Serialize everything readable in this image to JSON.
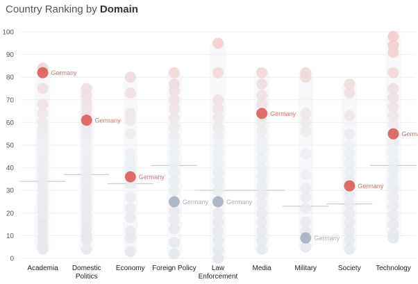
{
  "title": {
    "prefix": "Country Ranking by ",
    "emphasis": "Domain"
  },
  "colors": {
    "above": "#d9534f",
    "below": "#94a3b8",
    "grid": "#eeeeee",
    "axis_text": "#555555"
  },
  "chart_data": {
    "type": "scatter",
    "title": "Country Ranking by Domain",
    "xlabel": "",
    "ylabel": "",
    "ylim": [
      0,
      100
    ],
    "yticks": [
      0,
      10,
      20,
      30,
      40,
      50,
      60,
      70,
      80,
      90,
      100
    ],
    "grid": true,
    "highlight_label": "Germany",
    "categories": [
      {
        "name": "Academia",
        "lines": [
          "Academia"
        ],
        "reference": 34,
        "highlight": 82,
        "values": [
          84,
          75,
          68,
          64,
          60,
          57,
          54,
          51,
          48,
          45,
          42,
          39,
          36,
          33,
          30,
          27,
          24,
          21,
          18,
          15,
          12,
          9,
          6,
          4
        ]
      },
      {
        "name": "Domestic Politics",
        "lines": [
          "Domestic",
          "Politics"
        ],
        "reference": 37,
        "highlight": 61,
        "values": [
          75,
          72,
          69,
          66,
          63,
          58,
          55,
          52,
          49,
          46,
          43,
          40,
          37,
          34,
          31,
          28,
          25,
          22,
          19,
          16,
          13,
          10,
          8,
          4
        ]
      },
      {
        "name": "Economy",
        "lines": [
          "Economy"
        ],
        "reference": 33,
        "highlight": 36,
        "values": [
          80,
          73,
          64,
          61,
          55,
          46,
          42,
          38,
          33,
          27,
          22,
          18,
          12,
          9,
          3
        ]
      },
      {
        "name": "Foreign Policy",
        "lines": [
          "Foreign Policy"
        ],
        "reference": 41,
        "highlight": 25,
        "values": [
          82,
          77,
          74,
          70,
          66,
          62,
          58,
          54,
          50,
          46,
          42,
          38,
          34,
          30,
          21,
          17,
          13,
          7,
          2
        ]
      },
      {
        "name": "Law Enforcement",
        "lines": [
          "Law",
          "Enforcement"
        ],
        "reference": 30,
        "highlight": 25,
        "values": [
          95,
          82,
          70,
          66,
          62,
          58,
          54,
          50,
          46,
          42,
          38,
          34,
          30,
          20,
          16,
          12,
          8,
          4,
          0
        ]
      },
      {
        "name": "Media",
        "lines": [
          "Media"
        ],
        "reference": 30,
        "highlight": 64,
        "values": [
          82,
          77,
          72,
          68,
          60,
          56,
          52,
          48,
          44,
          40,
          36,
          32,
          28,
          24,
          20,
          16,
          12,
          8,
          4
        ]
      },
      {
        "name": "Military",
        "lines": [
          "Military"
        ],
        "reference": 23,
        "highlight": 9,
        "values": [
          82,
          80,
          64,
          60,
          56,
          46,
          37,
          31,
          27,
          22,
          16,
          12,
          5
        ]
      },
      {
        "name": "Society",
        "lines": [
          "Society"
        ],
        "reference": 24,
        "highlight": 32,
        "values": [
          77,
          73,
          63,
          55,
          50,
          46,
          42,
          38,
          34,
          28,
          24,
          20,
          16,
          12,
          8,
          4
        ]
      },
      {
        "name": "Technology",
        "lines": [
          "Technology"
        ],
        "reference": 41,
        "highlight": 55,
        "values": [
          98,
          94,
          91,
          82,
          75,
          71,
          67,
          63,
          59,
          51,
          47,
          43,
          39,
          35,
          31,
          27,
          23,
          19,
          15,
          11,
          9
        ]
      }
    ]
  }
}
